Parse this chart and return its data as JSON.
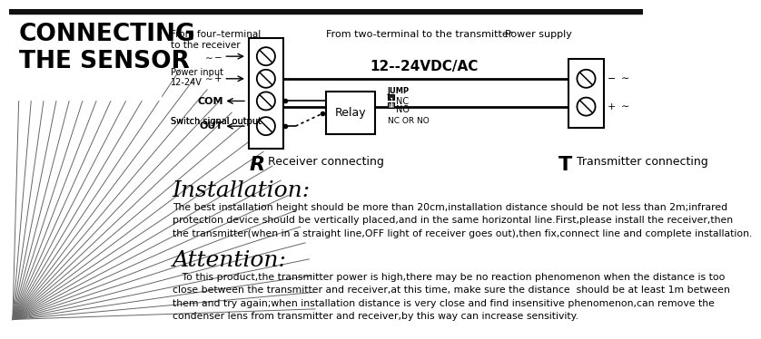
{
  "bg_color": "#ffffff",
  "top_bar_color": "#111111",
  "title_text1": "CONNECTING",
  "title_text2": "THE SENSOR",
  "label_four_terminal": "From four–terminal\nto the receiver",
  "label_two_terminal": "From two-terminal to the transmitter",
  "label_power_supply": "Power supply",
  "label_voltage": "12--24VDC/AC",
  "label_power_input": "Power input\n12-24V",
  "label_relay": "Relay",
  "label_jump": "JUMP",
  "label_nc": "NC",
  "label_no": "NO",
  "label_nc_or_no": "NC OR NO",
  "label_R": "R",
  "label_receiver": "Receiver connecting",
  "label_T": "T",
  "label_transmitter": "Transmitter connecting",
  "installation_title": "Installation:",
  "installation_text": "The best installation height should be more than 20cm,installation distance should be not less than 2m;infrared\nprotection device should be vertically placed,and in the same horizontal line.First,please install the receiver,then\nthe transmitter(when in a straight line,OFF light of receiver goes out),then fix,connect line and complete installation.",
  "attention_title": "Attention:",
  "attention_text": "   To this product,the transmitter power is high,there may be no reaction phenomenon when the distance is too\nclose between the transmitter and receiver,at this time, make sure the distance  should be at least 1m between\nthem and try again;when installation distance is very close and find insensitive phenomenon,can remove the\ncondenser lens from transmitter and receiver,by this way can increase sensitivity."
}
